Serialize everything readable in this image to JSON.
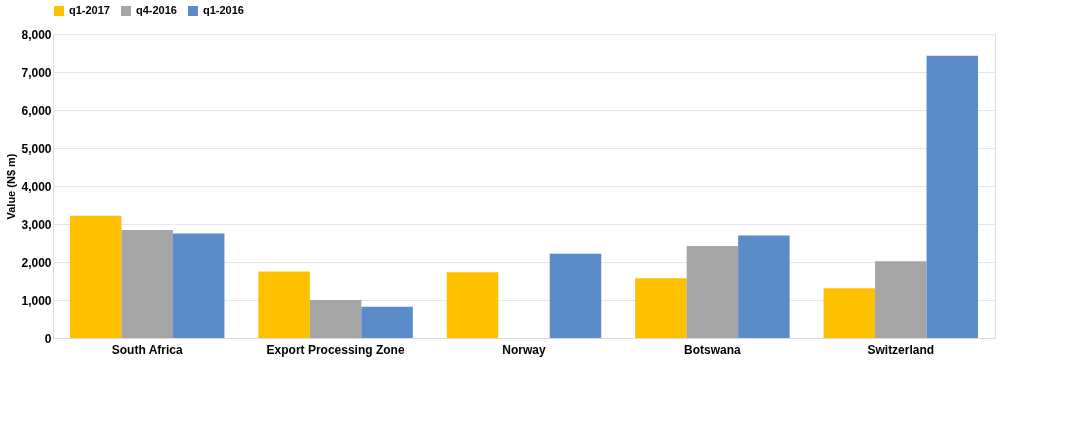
{
  "chart_data": {
    "type": "bar",
    "ylabel": "Value (N$ m)",
    "categories": [
      "South Africa",
      "Export Processing Zone",
      "Norway",
      "Botswana",
      "Switzerland"
    ],
    "series": [
      {
        "name": "q1-2017",
        "color": "#ffc000",
        "values": [
          3220,
          1750,
          1730,
          1570,
          1310
        ]
      },
      {
        "name": "q4-2016",
        "color": "#a5a5a5",
        "values": [
          2840,
          1000,
          null,
          2420,
          2020
        ]
      },
      {
        "name": "q1-2016",
        "color": "#5b8bc9",
        "values": [
          2750,
          820,
          2220,
          2700,
          7430
        ]
      }
    ],
    "ylim": [
      0,
      8000
    ],
    "yticks": [
      {
        "value": 0,
        "label": "0"
      },
      {
        "value": 1000,
        "label": "1,000"
      },
      {
        "value": 2000,
        "label": "2,000"
      },
      {
        "value": 3000,
        "label": "3,000"
      },
      {
        "value": 4000,
        "label": "4,000"
      },
      {
        "value": 5000,
        "label": "5,000"
      },
      {
        "value": 6000,
        "label": "6,000"
      },
      {
        "value": 7000,
        "label": "7,000"
      },
      {
        "value": 8000,
        "label": "8,000"
      }
    ],
    "grid": "y",
    "legend": "top"
  }
}
